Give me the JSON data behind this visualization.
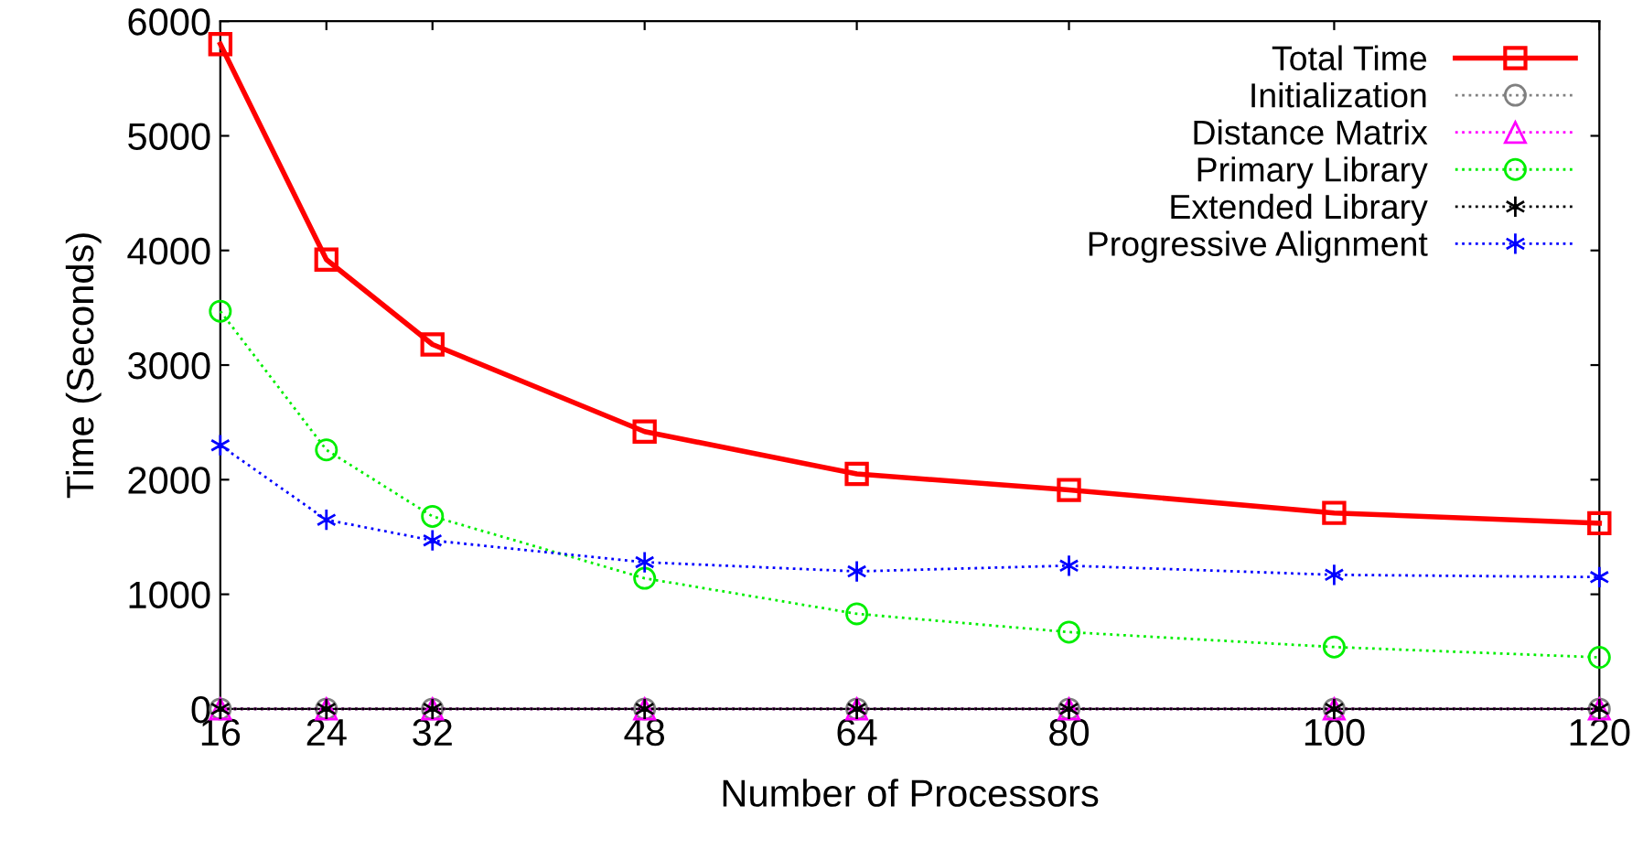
{
  "chart_data": {
    "type": "line",
    "xlabel": "Number of Processors",
    "ylabel": "Time (Seconds)",
    "x": [
      16,
      24,
      32,
      48,
      64,
      80,
      100,
      120
    ],
    "xlim": [
      16,
      120
    ],
    "xticks": [
      16,
      24,
      32,
      48,
      64,
      80,
      100,
      120
    ],
    "ylim": [
      0,
      6000
    ],
    "yticks": [
      0,
      1000,
      2000,
      3000,
      4000,
      5000,
      6000
    ],
    "grid": false,
    "legend": "top right",
    "series": [
      {
        "name": "Total Time",
        "color": "#ff0000",
        "marker": "square",
        "line_style": "solid",
        "values": [
          5800,
          3920,
          3180,
          2420,
          2050,
          1910,
          1710,
          1620
        ]
      },
      {
        "name": "Initialization",
        "color": "#808080",
        "marker": "circle",
        "line_style": "dotted",
        "values": [
          0,
          0,
          0,
          0,
          0,
          0,
          0,
          0
        ]
      },
      {
        "name": "Distance Matrix",
        "color": "#ff00ff",
        "marker": "triangle",
        "line_style": "dotted",
        "values": [
          0,
          0,
          0,
          0,
          0,
          0,
          0,
          0
        ]
      },
      {
        "name": "Primary Library",
        "color": "#00ee00",
        "marker": "circle",
        "line_style": "dotted",
        "values": [
          3470,
          2260,
          1680,
          1140,
          830,
          670,
          540,
          450
        ]
      },
      {
        "name": "Extended Library",
        "color": "#000000",
        "marker": "cross",
        "line_style": "dotted",
        "values": [
          0,
          0,
          0,
          0,
          0,
          0,
          0,
          0
        ]
      },
      {
        "name": "Progressive Alignment",
        "color": "#0000ff",
        "marker": "cross",
        "line_style": "dotted",
        "values": [
          2300,
          1650,
          1470,
          1280,
          1200,
          1250,
          1170,
          1150
        ]
      }
    ]
  }
}
